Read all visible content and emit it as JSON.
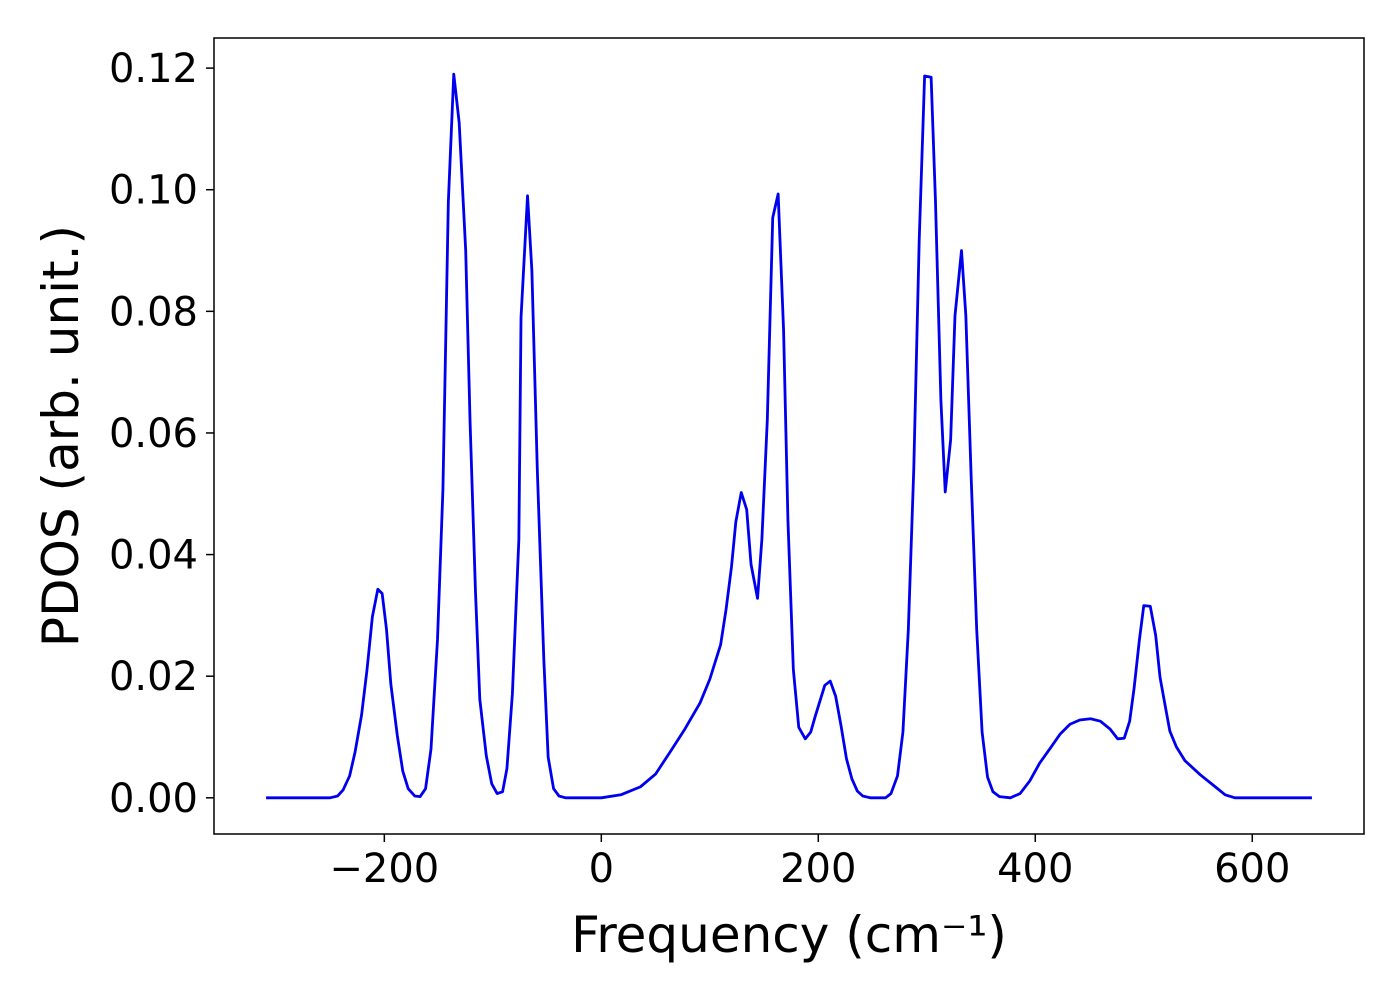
{
  "chart_data": {
    "type": "line",
    "x_label": "Frequency (cm⁻¹)",
    "y_label": "PDOS (arb. unit.)",
    "xlim": [
      -357,
      703
    ],
    "ylim": [
      -0.00595,
      0.12495
    ],
    "xticks": [
      {
        "value": -200,
        "label": "−200"
      },
      0,
      200,
      400,
      600
    ],
    "yticks": [
      {
        "value": 0,
        "label": "0.00"
      },
      {
        "value": 0.02,
        "label": "0.02"
      },
      {
        "value": 0.04,
        "label": "0.04"
      },
      {
        "value": 0.06,
        "label": "0.06"
      },
      {
        "value": 0.08,
        "label": "0.08"
      },
      {
        "value": 0.1,
        "label": "0.10"
      },
      {
        "value": 0.12,
        "label": "0.12"
      }
    ],
    "grid": false,
    "series": [
      {
        "color": "#0000ee",
        "x": [
          -309,
          -250,
          -243,
          -238,
          -232,
          -227,
          -221,
          -216,
          -211,
          -206,
          -202,
          -198,
          -194,
          -188,
          -183,
          -178,
          -172,
          -167,
          -162,
          -157,
          -151,
          -146,
          -141,
          -136,
          -131,
          -125,
          -121,
          -116,
          -112,
          -106,
          -101,
          -96,
          -91,
          -87,
          -82,
          -76,
          -74,
          -68,
          -64,
          -59,
          -53,
          -49,
          -44,
          -39,
          -33,
          0,
          18,
          36,
          50,
          64,
          77,
          91,
          100,
          110,
          115,
          120,
          124,
          129,
          134,
          138,
          144,
          148,
          153,
          158,
          163,
          168,
          172,
          177,
          182,
          188,
          193,
          197,
          202,
          206,
          211,
          216,
          221,
          226,
          231,
          236,
          241,
          248,
          262,
          267,
          273,
          278,
          283,
          288,
          293,
          298,
          304,
          308,
          313,
          317,
          322,
          326,
          332,
          336,
          341,
          346,
          351,
          356,
          361,
          367,
          377,
          386,
          395,
          404,
          414,
          423,
          432,
          441,
          451,
          460,
          469,
          476,
          482,
          487,
          491,
          496,
          500,
          506,
          511,
          515,
          520,
          524,
          530,
          538,
          552,
          566,
          575,
          584,
          655
        ],
        "values": [
          0,
          0,
          0.0003,
          0.0013,
          0.0036,
          0.0075,
          0.0136,
          0.021,
          0.0298,
          0.0343,
          0.0336,
          0.0277,
          0.0187,
          0.0102,
          0.0044,
          0.0015,
          0.0003,
          0.0002,
          0.0015,
          0.008,
          0.026,
          0.0507,
          0.098,
          0.119,
          0.111,
          0.09,
          0.062,
          0.034,
          0.0162,
          0.0069,
          0.0023,
          0.0007,
          0.001,
          0.0048,
          0.017,
          0.0425,
          0.079,
          0.099,
          0.0867,
          0.054,
          0.0228,
          0.0067,
          0.0015,
          0.0003,
          0,
          0,
          0.0005,
          0.0018,
          0.0039,
          0.0077,
          0.0113,
          0.0156,
          0.0195,
          0.0252,
          0.031,
          0.038,
          0.0454,
          0.0502,
          0.0474,
          0.0384,
          0.0328,
          0.0425,
          0.0621,
          0.0954,
          0.0993,
          0.0769,
          0.0457,
          0.0211,
          0.0116,
          0.0097,
          0.0108,
          0.0133,
          0.0162,
          0.0185,
          0.0192,
          0.0167,
          0.0118,
          0.0064,
          0.0031,
          0.0011,
          0.0003,
          0,
          0,
          0.0007,
          0.0036,
          0.0108,
          0.0277,
          0.054,
          0.0916,
          0.1187,
          0.1185,
          0.0982,
          0.0654,
          0.0503,
          0.0589,
          0.0793,
          0.09,
          0.0793,
          0.0523,
          0.0277,
          0.0108,
          0.0034,
          0.001,
          0.0002,
          0,
          0.0007,
          0.0028,
          0.0057,
          0.0082,
          0.0105,
          0.0121,
          0.0128,
          0.013,
          0.0126,
          0.0113,
          0.0097,
          0.0098,
          0.0126,
          0.0179,
          0.026,
          0.0316,
          0.0315,
          0.0267,
          0.0198,
          0.0149,
          0.011,
          0.0084,
          0.0061,
          0.0038,
          0.0018,
          0.0005,
          0,
          0
        ]
      }
    ]
  }
}
